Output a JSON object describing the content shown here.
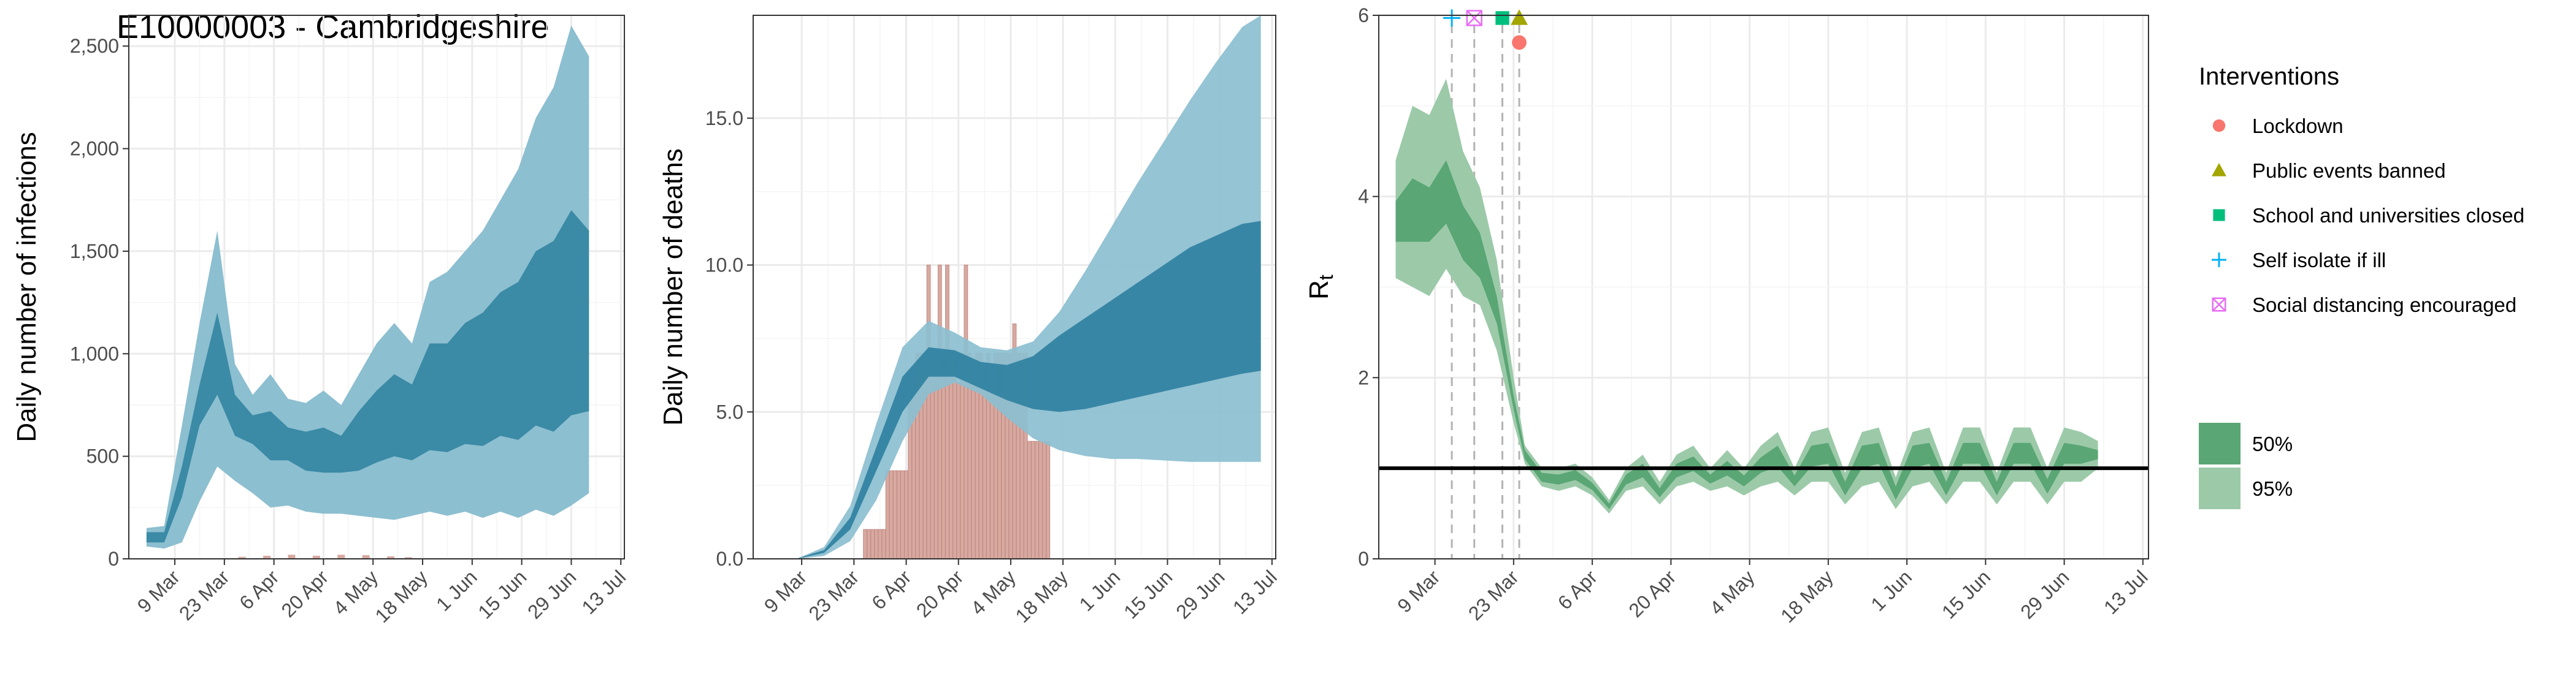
{
  "colors": {
    "infections_fill_outer": "#8cbfd0",
    "infections_fill_inner": "#3b8aa6",
    "deaths_bar": "#d7a9a1",
    "deaths_bar_stroke": "#c08b82",
    "deaths_fill_outer": "#8cbfd0",
    "deaths_fill_inner": "#2e7fa0",
    "rt_fill_50": "#5aa675",
    "rt_fill_95": "#9ccaa9",
    "grid": "#ebebeb",
    "lockdown": "#f8766d",
    "public_events": "#a3a500",
    "schools": "#00bf7d",
    "self_isolate": "#00b0f6",
    "social_distancing": "#e76bf3"
  },
  "title": "E10000003 - Cambridgeshire",
  "legend": {
    "interventions_title": "Interventions",
    "interventions": [
      {
        "label": "Lockdown",
        "shape": "circle",
        "color": "#f8766d"
      },
      {
        "label": "Public events banned",
        "shape": "triangle",
        "color": "#a3a500"
      },
      {
        "label": "School and universities closed",
        "shape": "square",
        "color": "#00bf7d"
      },
      {
        "label": "Self isolate if ill",
        "shape": "plus",
        "color": "#00b0f6"
      },
      {
        "label": "Social distancing encouraged",
        "shape": "boxx",
        "color": "#e76bf3"
      }
    ],
    "bands": [
      {
        "label": "50%",
        "color": "#5aa675"
      },
      {
        "label": "95%",
        "color": "#9ccaa9"
      }
    ]
  },
  "chart_data": [
    {
      "type": "area",
      "ylabel": "Daily number of infections",
      "x_ticks": [
        "9 Mar",
        "23 Mar",
        "6 Apr",
        "20 Apr",
        "4 May",
        "18 May",
        "1 Jun",
        "15 Jun",
        "29 Jun",
        "13 Jul"
      ],
      "y_ticks": [
        "0",
        "500",
        "1,000",
        "1,500",
        "2,000",
        "2,500"
      ],
      "xlim": [
        "2020-02-25",
        "2020-07-14"
      ],
      "ylim": [
        0,
        2650
      ],
      "series": [
        {
          "band": "95%",
          "x": [
            "2020-03-01",
            "2020-03-06",
            "2020-03-11",
            "2020-03-16",
            "2020-03-21",
            "2020-03-26",
            "2020-03-31",
            "2020-04-05",
            "2020-04-10",
            "2020-04-15",
            "2020-04-20",
            "2020-04-25",
            "2020-04-30",
            "2020-05-05",
            "2020-05-10",
            "2020-05-15",
            "2020-05-20",
            "2020-05-25",
            "2020-05-30",
            "2020-06-04",
            "2020-06-09",
            "2020-06-14",
            "2020-06-19",
            "2020-06-24",
            "2020-06-29",
            "2020-07-04"
          ],
          "lower": [
            60,
            50,
            80,
            280,
            450,
            380,
            320,
            250,
            260,
            230,
            220,
            220,
            210,
            200,
            190,
            210,
            230,
            210,
            230,
            200,
            230,
            200,
            240,
            210,
            260,
            320
          ],
          "upper": [
            150,
            160,
            650,
            1150,
            1600,
            950,
            800,
            900,
            780,
            760,
            820,
            750,
            900,
            1050,
            1150,
            1050,
            1350,
            1400,
            1500,
            1600,
            1750,
            1900,
            2150,
            2300,
            2600,
            2450
          ]
        },
        {
          "band": "50%",
          "x": [
            "2020-03-01",
            "2020-03-06",
            "2020-03-11",
            "2020-03-16",
            "2020-03-21",
            "2020-03-26",
            "2020-03-31",
            "2020-04-05",
            "2020-04-10",
            "2020-04-15",
            "2020-04-20",
            "2020-04-25",
            "2020-04-30",
            "2020-05-05",
            "2020-05-10",
            "2020-05-15",
            "2020-05-20",
            "2020-05-25",
            "2020-05-30",
            "2020-06-04",
            "2020-06-09",
            "2020-06-14",
            "2020-06-19",
            "2020-06-24",
            "2020-06-29",
            "2020-07-04"
          ],
          "lower": [
            80,
            80,
            300,
            650,
            800,
            600,
            560,
            480,
            480,
            430,
            420,
            420,
            430,
            470,
            500,
            480,
            530,
            520,
            560,
            550,
            600,
            580,
            650,
            620,
            700,
            720
          ],
          "upper": [
            130,
            130,
            450,
            850,
            1200,
            800,
            700,
            720,
            640,
            620,
            640,
            600,
            720,
            820,
            900,
            850,
            1050,
            1050,
            1150,
            1200,
            1300,
            1350,
            1500,
            1550,
            1700,
            1600
          ]
        }
      ],
      "observed": {
        "x": [
          "2020-03-28",
          "2020-04-04",
          "2020-04-11",
          "2020-04-18",
          "2020-04-25",
          "2020-05-02",
          "2020-05-09",
          "2020-05-14"
        ],
        "values": [
          10,
          15,
          20,
          15,
          20,
          18,
          12,
          8
        ]
      }
    },
    {
      "type": "bar",
      "ylabel": "Daily number of deaths",
      "x_ticks": [
        "9 Mar",
        "23 Mar",
        "6 Apr",
        "20 Apr",
        "4 May",
        "18 May",
        "1 Jun",
        "15 Jun",
        "29 Jun",
        "13 Jul"
      ],
      "y_ticks": [
        "0.0",
        "5.0",
        "10.0",
        "15.0"
      ],
      "xlim": [
        "2020-02-25",
        "2020-07-14"
      ],
      "ylim": [
        0,
        18.5
      ],
      "deaths": {
        "x": [
          "2020-03-26",
          "2020-03-27",
          "2020-03-28",
          "2020-03-29",
          "2020-03-30",
          "2020-03-31",
          "2020-04-01",
          "2020-04-02",
          "2020-04-03",
          "2020-04-04",
          "2020-04-05",
          "2020-04-06",
          "2020-04-07",
          "2020-04-08",
          "2020-04-09",
          "2020-04-10",
          "2020-04-11",
          "2020-04-12",
          "2020-04-13",
          "2020-04-14",
          "2020-04-15",
          "2020-04-16",
          "2020-04-17",
          "2020-04-18",
          "2020-04-19",
          "2020-04-20",
          "2020-04-21",
          "2020-04-22",
          "2020-04-23",
          "2020-04-24",
          "2020-04-25",
          "2020-04-26",
          "2020-04-27",
          "2020-04-28",
          "2020-04-29",
          "2020-04-30",
          "2020-05-01",
          "2020-05-02",
          "2020-05-03",
          "2020-05-04",
          "2020-05-05",
          "2020-05-06",
          "2020-05-07",
          "2020-05-08",
          "2020-05-09",
          "2020-05-10",
          "2020-05-11",
          "2020-05-12",
          "2020-05-13",
          "2020-05-14"
        ],
        "values": [
          1,
          1,
          1,
          1,
          1,
          1,
          3,
          3,
          3,
          3,
          3,
          3,
          6,
          6,
          7,
          7,
          7,
          10,
          7,
          7,
          10,
          7,
          10,
          7,
          7,
          6,
          7,
          10,
          7,
          6,
          7,
          7,
          6,
          7,
          6,
          7,
          7,
          7,
          7,
          7,
          8,
          7,
          7,
          7,
          4,
          4,
          4,
          4,
          4,
          4
        ]
      },
      "series": [
        {
          "band": "95%",
          "x": [
            "2020-03-01",
            "2020-03-08",
            "2020-03-15",
            "2020-03-22",
            "2020-03-29",
            "2020-04-05",
            "2020-04-12",
            "2020-04-19",
            "2020-04-26",
            "2020-05-03",
            "2020-05-10",
            "2020-05-17",
            "2020-05-24",
            "2020-05-31",
            "2020-06-07",
            "2020-06-14",
            "2020-06-21",
            "2020-06-28",
            "2020-07-05",
            "2020-07-10"
          ],
          "lower": [
            0.0,
            0.0,
            0.1,
            0.6,
            2.0,
            4.0,
            5.6,
            6.0,
            5.6,
            4.8,
            4.1,
            3.7,
            3.5,
            3.4,
            3.4,
            3.35,
            3.3,
            3.3,
            3.3,
            3.3
          ],
          "upper": [
            0.0,
            0.02,
            0.4,
            1.8,
            4.6,
            7.2,
            8.1,
            7.7,
            7.2,
            7.1,
            7.4,
            8.4,
            9.8,
            11.3,
            12.8,
            14.2,
            15.6,
            16.9,
            18.1,
            18.5
          ]
        },
        {
          "band": "50%",
          "x": [
            "2020-03-01",
            "2020-03-08",
            "2020-03-15",
            "2020-03-22",
            "2020-03-29",
            "2020-04-05",
            "2020-04-12",
            "2020-04-19",
            "2020-04-26",
            "2020-05-03",
            "2020-05-10",
            "2020-05-17",
            "2020-05-24",
            "2020-05-31",
            "2020-06-07",
            "2020-06-14",
            "2020-06-21",
            "2020-06-28",
            "2020-07-05",
            "2020-07-10"
          ],
          "lower": [
            0.0,
            0.01,
            0.2,
            1.0,
            3.0,
            5.0,
            6.2,
            6.2,
            5.8,
            5.4,
            5.1,
            5.0,
            5.1,
            5.3,
            5.5,
            5.7,
            5.9,
            6.1,
            6.3,
            6.4
          ],
          "upper": [
            0.0,
            0.02,
            0.3,
            1.4,
            3.8,
            6.2,
            7.2,
            7.1,
            6.7,
            6.6,
            6.9,
            7.6,
            8.2,
            8.8,
            9.4,
            10.0,
            10.6,
            11.0,
            11.4,
            11.5
          ]
        }
      ]
    },
    {
      "type": "area",
      "ylabel": "R",
      "ylabel_sub": "t",
      "x_ticks": [
        "9 Mar",
        "23 Mar",
        "6 Apr",
        "20 Apr",
        "4 May",
        "18 May",
        "1 Jun",
        "15 Jun",
        "29 Jun",
        "13 Jul"
      ],
      "y_ticks": [
        "0",
        "2",
        "4",
        "6"
      ],
      "xlim": [
        "2020-02-28",
        "2020-07-14"
      ],
      "ylim": [
        0,
        6
      ],
      "reference_line": 1,
      "intervention_dates": {
        "Self isolate if ill": "2020-03-12",
        "Social distancing encouraged": "2020-03-16",
        "School and universities closed": "2020-03-21",
        "Public events banned": "2020-03-24",
        "Lockdown": "2020-03-24"
      },
      "series": [
        {
          "band": "95%",
          "x": [
            "2020-03-02",
            "2020-03-05",
            "2020-03-08",
            "2020-03-11",
            "2020-03-14",
            "2020-03-17",
            "2020-03-20",
            "2020-03-23",
            "2020-03-25",
            "2020-03-28",
            "2020-03-31",
            "2020-04-03",
            "2020-04-06",
            "2020-04-09",
            "2020-04-12",
            "2020-04-15",
            "2020-04-18",
            "2020-04-21",
            "2020-04-24",
            "2020-04-27",
            "2020-04-30",
            "2020-05-03",
            "2020-05-06",
            "2020-05-09",
            "2020-05-12",
            "2020-05-15",
            "2020-05-18",
            "2020-05-21",
            "2020-05-24",
            "2020-05-27",
            "2020-05-30",
            "2020-06-02",
            "2020-06-05",
            "2020-06-08",
            "2020-06-11",
            "2020-06-14",
            "2020-06-17",
            "2020-06-20",
            "2020-06-23",
            "2020-06-26",
            "2020-06-29",
            "2020-07-02",
            "2020-07-05"
          ],
          "lower": [
            3.1,
            3.0,
            2.9,
            3.2,
            2.9,
            2.8,
            2.3,
            1.5,
            1.05,
            0.8,
            0.75,
            0.8,
            0.7,
            0.5,
            0.75,
            0.8,
            0.6,
            0.8,
            0.85,
            0.75,
            0.8,
            0.7,
            0.8,
            0.85,
            0.7,
            0.85,
            0.85,
            0.6,
            0.8,
            0.85,
            0.55,
            0.8,
            0.85,
            0.6,
            0.85,
            0.85,
            0.6,
            0.85,
            0.85,
            0.6,
            0.85,
            0.85,
            1.0
          ],
          "upper": [
            4.4,
            5.0,
            4.9,
            5.3,
            4.5,
            4.1,
            3.3,
            2.0,
            1.25,
            1.0,
            1.0,
            1.05,
            0.9,
            0.65,
            1.0,
            1.15,
            0.85,
            1.15,
            1.25,
            1.0,
            1.2,
            1.0,
            1.25,
            1.4,
            1.0,
            1.4,
            1.45,
            0.95,
            1.4,
            1.45,
            0.9,
            1.4,
            1.45,
            0.95,
            1.45,
            1.45,
            0.95,
            1.45,
            1.45,
            1.0,
            1.45,
            1.4,
            1.3
          ]
        },
        {
          "band": "50%",
          "x": [
            "2020-03-02",
            "2020-03-05",
            "2020-03-08",
            "2020-03-11",
            "2020-03-14",
            "2020-03-17",
            "2020-03-20",
            "2020-03-23",
            "2020-03-25",
            "2020-03-28",
            "2020-03-31",
            "2020-04-03",
            "2020-04-06",
            "2020-04-09",
            "2020-04-12",
            "2020-04-15",
            "2020-04-18",
            "2020-04-21",
            "2020-04-24",
            "2020-04-27",
            "2020-04-30",
            "2020-05-03",
            "2020-05-06",
            "2020-05-09",
            "2020-05-12",
            "2020-05-15",
            "2020-05-18",
            "2020-05-21",
            "2020-05-24",
            "2020-05-27",
            "2020-05-30",
            "2020-06-02",
            "2020-06-05",
            "2020-06-08",
            "2020-06-11",
            "2020-06-14",
            "2020-06-17",
            "2020-06-20",
            "2020-06-23",
            "2020-06-26",
            "2020-06-29",
            "2020-07-02",
            "2020-07-05"
          ],
          "lower": [
            3.5,
            3.5,
            3.5,
            3.7,
            3.3,
            3.1,
            2.6,
            1.65,
            1.1,
            0.85,
            0.82,
            0.87,
            0.76,
            0.55,
            0.82,
            0.9,
            0.68,
            0.9,
            0.97,
            0.83,
            0.92,
            0.8,
            0.95,
            1.02,
            0.8,
            1.02,
            1.05,
            0.7,
            1.0,
            1.05,
            0.65,
            1.0,
            1.05,
            0.7,
            1.05,
            1.05,
            0.7,
            1.05,
            1.05,
            0.72,
            1.05,
            1.05,
            1.1
          ],
          "upper": [
            3.95,
            4.2,
            4.1,
            4.4,
            3.9,
            3.6,
            2.9,
            1.8,
            1.2,
            0.95,
            0.93,
            0.98,
            0.84,
            0.61,
            0.93,
            1.05,
            0.78,
            1.05,
            1.13,
            0.93,
            1.08,
            0.92,
            1.12,
            1.25,
            0.92,
            1.25,
            1.28,
            0.85,
            1.25,
            1.28,
            0.8,
            1.25,
            1.28,
            0.85,
            1.28,
            1.28,
            0.85,
            1.28,
            1.28,
            0.88,
            1.28,
            1.25,
            1.2
          ]
        }
      ]
    }
  ]
}
